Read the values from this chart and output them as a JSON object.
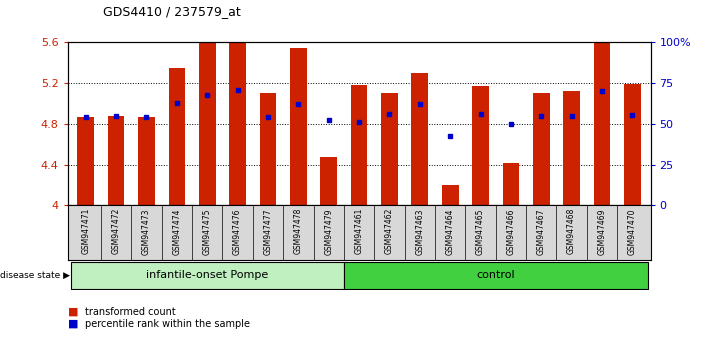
{
  "title": "GDS4410 / 237579_at",
  "samples": [
    "GSM947471",
    "GSM947472",
    "GSM947473",
    "GSM947474",
    "GSM947475",
    "GSM947476",
    "GSM947477",
    "GSM947478",
    "GSM947479",
    "GSM947461",
    "GSM947462",
    "GSM947463",
    "GSM947464",
    "GSM947465",
    "GSM947466",
    "GSM947467",
    "GSM947468",
    "GSM947469",
    "GSM947470"
  ],
  "transformed_count": [
    4.87,
    4.88,
    4.87,
    5.35,
    5.6,
    5.6,
    5.1,
    5.55,
    4.47,
    5.18,
    5.1,
    5.3,
    4.2,
    5.17,
    4.42,
    5.1,
    5.12,
    5.6,
    5.19
  ],
  "percentile_rank": [
    4.865,
    4.875,
    4.865,
    5.01,
    5.08,
    5.13,
    4.865,
    5.0,
    4.835,
    4.815,
    4.9,
    5.0,
    4.68,
    4.9,
    4.8,
    4.875,
    4.875,
    5.12,
    4.89
  ],
  "group_labels": [
    "infantile-onset Pompe",
    "control"
  ],
  "group_counts": [
    9,
    10
  ],
  "bar_color": "#cc2200",
  "dot_color": "#0000cc",
  "ylim": [
    4.0,
    5.6
  ],
  "yticks": [
    4.0,
    4.4,
    4.8,
    5.2,
    5.6
  ],
  "ytick_labels": [
    "4",
    "4.4",
    "4.8",
    "5.2",
    "5.6"
  ],
  "right_yticks": [
    0,
    25,
    50,
    75,
    100
  ],
  "right_ytick_labels": [
    "0",
    "25",
    "50",
    "75",
    "100%"
  ],
  "bar_color_hex": "#cc2200",
  "dot_color_hex": "#0000cc",
  "background_color": "#ffffff",
  "disease_state_label": "disease state",
  "group1_color": "#c0f0c0",
  "group2_color": "#40d040",
  "legend_items": [
    "transformed count",
    "percentile rank within the sample"
  ],
  "legend_colors": [
    "#cc2200",
    "#0000cc"
  ],
  "xtick_bg": "#d8d8d8"
}
